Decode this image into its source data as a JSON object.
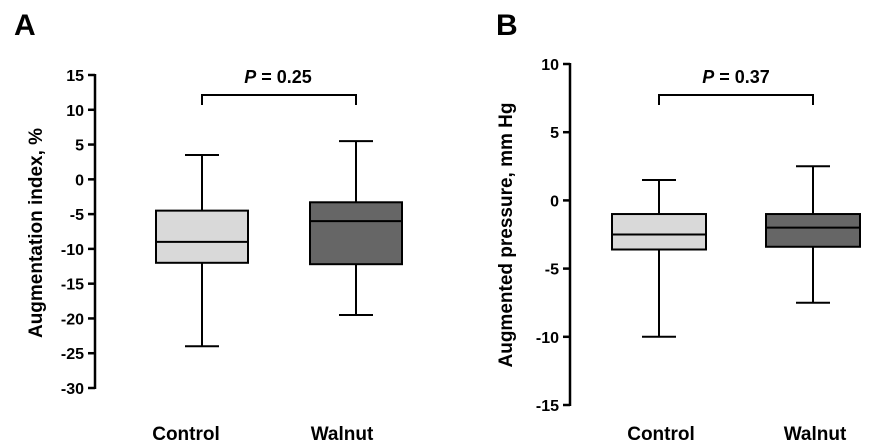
{
  "chart_data": [
    {
      "type": "box",
      "panel_label": "A",
      "ylabel": "Augmentation index, %",
      "ylim": [
        -30,
        15
      ],
      "yticks": [
        15,
        10,
        5,
        0,
        -5,
        -10,
        -15,
        -20,
        -25,
        -30
      ],
      "categories": [
        "Control",
        "Walnut"
      ],
      "boxes": [
        {
          "category": "Control",
          "min": -24,
          "q1": -12,
          "median": -9,
          "q3": -4.5,
          "max": 3.5,
          "color": "#d9d9d9"
        },
        {
          "category": "Walnut",
          "min": -19.5,
          "q1": -12.2,
          "median": -6,
          "q3": -3.3,
          "max": 5.5,
          "color": "#666666"
        }
      ],
      "annotation": {
        "p_letter": "P",
        "p_text": " = 0.25"
      }
    },
    {
      "type": "box",
      "panel_label": "B",
      "ylabel": "Augmented pressure, mm Hg",
      "ylim": [
        -15,
        10
      ],
      "yticks": [
        10,
        5,
        0,
        -5,
        -10,
        -15
      ],
      "categories": [
        "Control",
        "Walnut"
      ],
      "boxes": [
        {
          "category": "Control",
          "min": -10,
          "q1": -3.6,
          "median": -2.5,
          "q3": -1,
          "max": 1.5,
          "color": "#d9d9d9"
        },
        {
          "category": "Walnut",
          "min": -7.5,
          "q1": -3.4,
          "median": -2,
          "q3": -1,
          "max": 2.5,
          "color": "#666666"
        }
      ],
      "annotation": {
        "p_letter": "P",
        "p_text": " = 0.37"
      }
    }
  ]
}
